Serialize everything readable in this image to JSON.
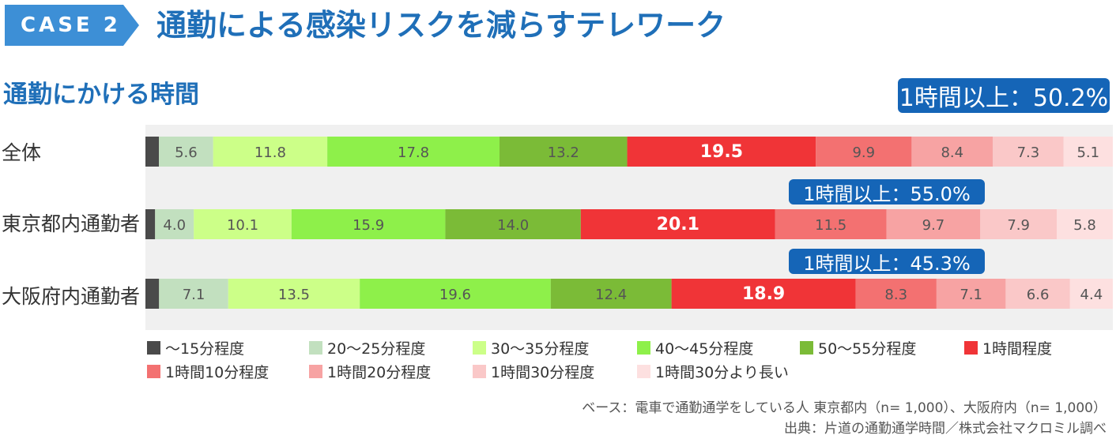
{
  "header": {
    "case_label": "CASE 2",
    "title": "通勤による感染リスクを減らすテレワーク"
  },
  "section_title": "通勤にかける時間",
  "callouts": {
    "total": "1時間以上：50.2%",
    "tokyo": "1時間以上：55.0%",
    "osaka": "1時間以上：45.3%"
  },
  "chart_data": {
    "type": "bar",
    "orientation": "horizontal",
    "stacked": "100%",
    "categories": [
      "全体",
      "東京都内通勤者",
      "大阪府内通勤者"
    ],
    "series": [
      {
        "name": "〜15分程度",
        "color": "#4a4a4a",
        "values": [
          1.4,
          1.0,
          1.4
        ]
      },
      {
        "name": "20〜25分程度",
        "color": "#c2e0bf",
        "values": [
          5.6,
          4.0,
          7.1
        ]
      },
      {
        "name": "30〜35分程度",
        "color": "#ccff88",
        "values": [
          11.8,
          10.1,
          13.5
        ]
      },
      {
        "name": "40〜45分程度",
        "color": "#8ef04a",
        "values": [
          17.8,
          15.9,
          19.6
        ]
      },
      {
        "name": "50〜55分程度",
        "color": "#7bbb37",
        "values": [
          13.2,
          14.0,
          12.4
        ]
      },
      {
        "name": "1時間程度",
        "color": "#f03437",
        "values": [
          19.5,
          20.1,
          18.9
        ]
      },
      {
        "name": "1時間10分程度",
        "color": "#f37171",
        "values": [
          9.9,
          11.5,
          8.3
        ]
      },
      {
        "name": "1時間20分程度",
        "color": "#f7a3a3",
        "values": [
          8.4,
          9.7,
          7.1
        ]
      },
      {
        "name": "1時間30分程度",
        "color": "#fac8c8",
        "values": [
          7.3,
          7.9,
          6.6
        ]
      },
      {
        "name": "1時間30分より長い",
        "color": "#fde0e0",
        "values": [
          5.1,
          5.8,
          4.4
        ]
      }
    ],
    "value_labels": [
      [
        "",
        "5.6",
        "11.8",
        "17.8",
        "13.2",
        "19.5",
        "9.9",
        "8.4",
        "7.3",
        "5.1"
      ],
      [
        "",
        "4.0",
        "10.1",
        "15.9",
        "14.0",
        "20.1",
        "11.5",
        "9.7",
        "7.9",
        "5.8"
      ],
      [
        "",
        "7.1",
        "13.5",
        "19.6",
        "12.4",
        "18.9",
        "8.3",
        "7.1",
        "6.6",
        "4.4"
      ]
    ],
    "xlim": [
      0,
      100
    ],
    "legend_position": "bottom"
  },
  "footnotes": {
    "base": "ベース：電車で通勤通学をしている人 東京都内（n= 1,000）、大阪府内（n= 1,000）",
    "source": "出典：片道の通勤通学時間／株式会社マクロミル調べ"
  }
}
